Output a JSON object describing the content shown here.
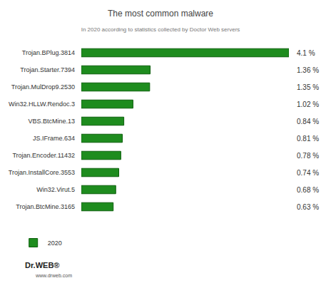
{
  "chart_data": {
    "type": "bar",
    "orientation": "horizontal",
    "title": "The most common malware",
    "subtitle": "In 2020 according to statistics collected by Doctor Web servers",
    "categories": [
      "Trojan.BPlug.3814",
      "Trojan.Starter.7394",
      "Trojan.MulDrop9.2530",
      "Win32.HLLW.Rendoc.3",
      "VBS.BtcMine.13",
      "JS.IFrame.634",
      "Trojan.Encoder.11432",
      "Trojan.InstallCore.3553",
      "Win32.Virut.5",
      "Trojan.BtcMine.3165"
    ],
    "series": [
      {
        "name": "2020",
        "color": "#1e8c1e",
        "values": [
          4.1,
          1.36,
          1.35,
          1.02,
          0.84,
          0.81,
          0.78,
          0.74,
          0.68,
          0.63
        ],
        "value_labels": [
          "4.1 %",
          "1.36 %",
          "1.35 %",
          "1.02 %",
          "0.84 %",
          "0.81 %",
          "0.78 %",
          "0.74 %",
          "0.68 %",
          "0.63 %"
        ]
      }
    ],
    "xlim": [
      0,
      4.1
    ],
    "data_labels": true,
    "tick_labels": "y",
    "legend": "bottom left",
    "grid": false,
    "annotations": [
      "Dr.WEB®",
      "www.drweb.com"
    ]
  }
}
